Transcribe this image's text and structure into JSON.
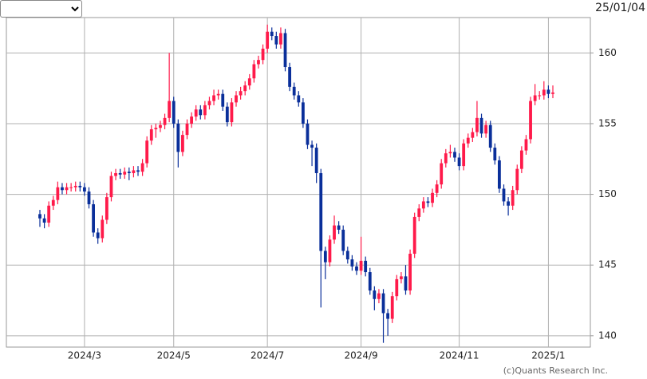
{
  "date": "25/01/04",
  "credit": "(c)Quants Research Inc.",
  "chart_data": {
    "type": "candlestick",
    "up_color": "#ff1a4a",
    "down_color": "#0a2f9a",
    "grid": true,
    "ylim": [
      139.2,
      162.5
    ],
    "yticks": [
      140,
      145,
      150,
      155,
      160
    ],
    "categories": [
      null,
      null,
      null,
      null,
      null,
      null,
      null,
      null,
      null,
      null,
      "2024/3",
      null,
      null,
      null,
      null,
      null,
      null,
      null,
      null,
      null,
      null,
      null,
      null,
      null,
      null,
      null,
      null,
      null,
      null,
      null,
      "2024/5",
      null,
      null,
      null,
      null,
      null,
      null,
      null,
      null,
      null,
      null,
      null,
      null,
      null,
      null,
      null,
      null,
      null,
      null,
      null,
      null,
      "2024/7",
      null,
      null,
      null,
      null,
      null,
      null,
      null,
      null,
      null,
      null,
      null,
      null,
      null,
      null,
      null,
      null,
      null,
      null,
      null,
      null,
      "2024/9",
      null,
      null,
      null,
      null,
      null,
      null,
      null,
      null,
      null,
      null,
      null,
      null,
      null,
      null,
      null,
      null,
      null,
      null,
      null,
      null,
      null,
      "2024/11",
      null,
      null,
      null,
      null,
      null,
      null,
      null,
      null,
      null,
      null,
      null,
      null,
      null,
      null,
      null,
      null,
      null,
      null,
      null,
      "2025/1",
      null
    ],
    "open": [
      148.6,
      148.3,
      148.0,
      149.2,
      149.6,
      150.5,
      150.3,
      150.5,
      150.5,
      150.6,
      150.5,
      150.2,
      149.3,
      147.3,
      146.9,
      148.2,
      149.8,
      151.3,
      151.5,
      151.4,
      151.6,
      151.5,
      151.7,
      151.6,
      152.2,
      153.8,
      154.6,
      154.7,
      154.9,
      155.4,
      156.6,
      155.0,
      153.0,
      154.2,
      155.0,
      155.5,
      156.0,
      155.6,
      156.3,
      156.6,
      157.0,
      157.1,
      156.2,
      155.1,
      156.5,
      157.0,
      157.3,
      157.7,
      158.2,
      159.2,
      159.5,
      160.3,
      161.5,
      161.2,
      160.6,
      161.4,
      159.0,
      157.6,
      157.0,
      156.5,
      155.0,
      153.5,
      153.3,
      151.5,
      146.0,
      145.2,
      146.8,
      147.8,
      147.5,
      146.0,
      145.4,
      144.9,
      144.6,
      145.3,
      144.5,
      143.2,
      142.6,
      143.0,
      141.6,
      141.2,
      142.8,
      144.0,
      144.2,
      143.2,
      145.8,
      148.4,
      149.0,
      149.5,
      149.4,
      150.1,
      150.7,
      152.2,
      152.9,
      153.0,
      152.6,
      152.0,
      153.6,
      154.0,
      154.4,
      155.4,
      154.3,
      154.9,
      153.3,
      152.4,
      150.4,
      149.5,
      149.2,
      150.3,
      151.8,
      153.1,
      153.9,
      156.6,
      157.0,
      157.0,
      157.4,
      157.1
    ],
    "high": [
      148.9,
      148.6,
      149.5,
      149.9,
      150.9,
      150.8,
      150.8,
      150.8,
      150.9,
      150.9,
      150.8,
      150.5,
      149.6,
      147.6,
      148.5,
      150.1,
      151.6,
      151.8,
      151.8,
      151.9,
      151.9,
      152.0,
      152.0,
      152.5,
      154.1,
      154.9,
      155.0,
      155.2,
      155.7,
      160.0,
      156.9,
      155.3,
      154.5,
      155.3,
      155.8,
      156.3,
      156.3,
      156.6,
      156.9,
      157.4,
      157.4,
      157.4,
      156.5,
      156.8,
      157.3,
      157.6,
      158.0,
      158.5,
      159.5,
      159.8,
      160.6,
      162.0,
      161.8,
      161.5,
      161.8,
      161.7,
      159.3,
      157.9,
      157.3,
      156.8,
      155.3,
      153.8,
      153.6,
      151.8,
      146.3,
      147.1,
      148.5,
      148.1,
      147.8,
      146.3,
      145.7,
      145.2,
      147.0,
      145.6,
      144.8,
      143.5,
      143.3,
      143.3,
      141.9,
      143.1,
      144.3,
      144.5,
      145.0,
      146.1,
      148.7,
      149.3,
      149.8,
      149.8,
      150.4,
      151.0,
      152.5,
      153.2,
      153.5,
      153.3,
      152.9,
      153.9,
      154.3,
      154.7,
      156.6,
      155.7,
      155.2,
      155.2,
      153.6,
      152.7,
      150.7,
      149.8,
      150.6,
      152.1,
      153.4,
      154.2,
      156.9,
      157.8,
      157.3,
      158.0,
      157.7,
      157.7
    ],
    "low": [
      147.7,
      147.6,
      147.7,
      148.9,
      149.3,
      150.0,
      150.0,
      150.2,
      150.2,
      150.2,
      149.9,
      149.0,
      147.0,
      146.5,
      146.6,
      147.9,
      149.5,
      151.0,
      151.1,
      151.1,
      151.0,
      151.2,
      151.3,
      151.3,
      151.9,
      153.5,
      154.0,
      154.4,
      154.6,
      155.1,
      154.7,
      151.9,
      152.7,
      153.9,
      154.7,
      155.2,
      155.3,
      155.3,
      156.0,
      156.3,
      156.7,
      155.9,
      154.8,
      154.8,
      156.2,
      156.7,
      157.0,
      157.4,
      157.9,
      158.9,
      159.2,
      160.0,
      160.9,
      160.3,
      160.3,
      158.7,
      157.3,
      156.7,
      156.2,
      154.7,
      153.2,
      152.0,
      150.8,
      142.0,
      144.0,
      144.9,
      146.5,
      147.2,
      145.7,
      145.1,
      144.6,
      144.3,
      144.3,
      144.2,
      142.9,
      141.8,
      142.3,
      139.5,
      140.0,
      140.9,
      142.5,
      143.7,
      142.9,
      142.9,
      145.5,
      148.1,
      148.7,
      149.1,
      149.1,
      149.8,
      150.4,
      151.9,
      152.6,
      152.3,
      151.7,
      151.7,
      153.3,
      153.7,
      154.1,
      154.0,
      154.0,
      153.0,
      152.1,
      150.1,
      149.2,
      148.5,
      148.9,
      150.0,
      151.5,
      152.8,
      153.6,
      156.3,
      156.7,
      156.7,
      156.8,
      156.8
    ],
    "close": [
      148.3,
      148.0,
      149.2,
      149.6,
      150.5,
      150.3,
      150.5,
      150.5,
      150.6,
      150.5,
      150.2,
      149.3,
      147.3,
      146.9,
      148.2,
      149.8,
      151.3,
      151.5,
      151.4,
      151.6,
      151.5,
      151.7,
      151.6,
      152.2,
      153.8,
      154.6,
      154.7,
      154.9,
      155.4,
      156.6,
      155.0,
      153.0,
      154.2,
      155.0,
      155.5,
      156.0,
      155.6,
      156.3,
      156.6,
      157.0,
      157.1,
      156.2,
      155.1,
      156.5,
      157.0,
      157.3,
      157.7,
      158.2,
      159.2,
      159.5,
      160.3,
      161.5,
      161.2,
      160.6,
      161.4,
      159.0,
      157.6,
      157.0,
      156.5,
      155.0,
      153.5,
      153.3,
      151.5,
      146.0,
      145.2,
      146.8,
      147.8,
      147.5,
      146.0,
      145.4,
      144.9,
      144.6,
      145.3,
      144.5,
      143.2,
      142.6,
      143.0,
      141.6,
      141.2,
      142.8,
      144.0,
      144.2,
      143.2,
      145.8,
      148.4,
      149.0,
      149.5,
      149.4,
      150.1,
      150.7,
      152.2,
      152.9,
      153.0,
      152.6,
      152.0,
      153.6,
      154.0,
      154.4,
      155.4,
      154.3,
      154.9,
      153.3,
      152.4,
      150.4,
      149.5,
      149.2,
      150.3,
      151.8,
      153.1,
      153.9,
      156.6,
      157.0,
      157.0,
      157.4,
      157.1,
      157.2
    ]
  }
}
